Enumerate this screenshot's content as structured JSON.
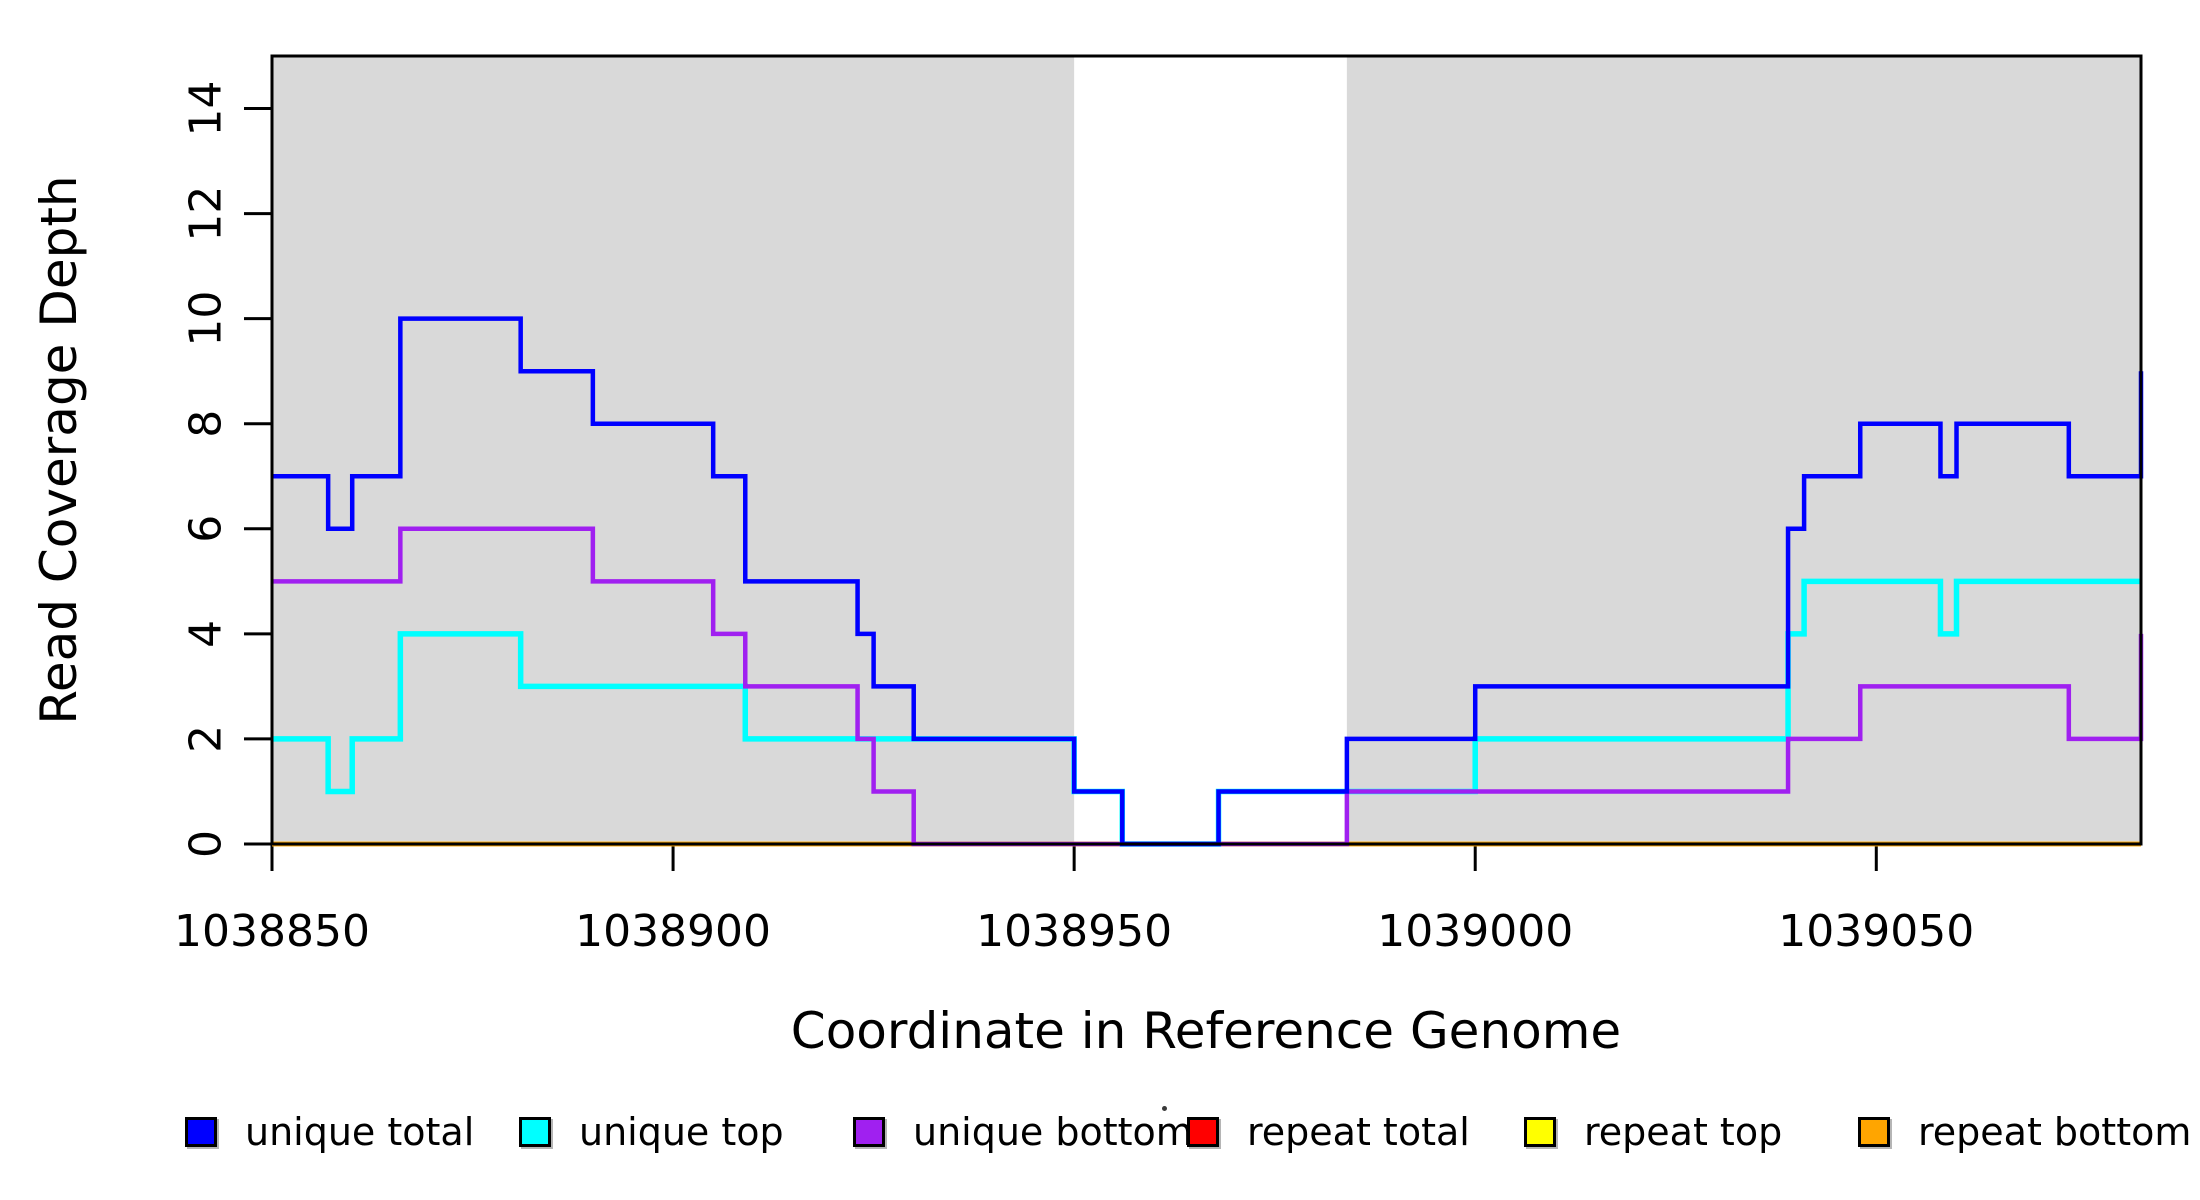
{
  "chart_data": {
    "type": "line",
    "subtype": "step-s",
    "title": "",
    "xlabel": "Coordinate in Reference Genome",
    "ylabel": "Read Coverage Depth",
    "xlim": [
      1038850,
      1039083
    ],
    "ylim": [
      0,
      15
    ],
    "x_ticks": [
      1038850,
      1038900,
      1038950,
      1039000,
      1039050
    ],
    "x_tick_labels": [
      "1038850",
      "1038900",
      "1038950",
      "1039000",
      "1039050"
    ],
    "y_ticks": [
      0,
      2,
      4,
      6,
      8,
      10,
      12,
      14
    ],
    "y_tick_labels": [
      "0",
      "2",
      "4",
      "6",
      "8",
      "10",
      "12",
      "14"
    ],
    "grid": false,
    "legend_position": "bottom",
    "background_color": "#FFFFFF",
    "box_color": "#000000",
    "shaded_region_color": "#D9D9D9",
    "shaded_regions": [
      [
        1038850,
        1038950
      ],
      [
        1038984,
        1039083
      ]
    ],
    "series": [
      {
        "name": "repeat total",
        "color": "#FF0000",
        "width": 4.5,
        "steps": [
          [
            1038850,
            0
          ]
        ]
      },
      {
        "name": "repeat top",
        "color": "#FFFF00",
        "width": 4.5,
        "steps": [
          [
            1038850,
            0
          ]
        ]
      },
      {
        "name": "repeat bottom",
        "color": "#FFA500",
        "width": 4.5,
        "steps": [
          [
            1038850,
            0
          ]
        ]
      },
      {
        "name": "unique top",
        "color": "#00FFFF",
        "width": 5.5,
        "steps": [
          [
            1038850,
            2
          ],
          [
            1038857,
            1
          ],
          [
            1038860,
            2
          ],
          [
            1038866,
            4
          ],
          [
            1038881,
            3
          ],
          [
            1038909,
            2
          ],
          [
            1038950,
            1
          ],
          [
            1038956,
            0
          ],
          [
            1038968,
            1
          ],
          [
            1039000,
            2
          ],
          [
            1039039,
            4
          ],
          [
            1039041,
            5
          ],
          [
            1039058,
            4
          ],
          [
            1039060,
            5
          ]
        ]
      },
      {
        "name": "unique bottom",
        "color": "#A020F0",
        "width": 4.5,
        "steps": [
          [
            1038850,
            5
          ],
          [
            1038866,
            6
          ],
          [
            1038890,
            5
          ],
          [
            1038905,
            4
          ],
          [
            1038909,
            3
          ],
          [
            1038923,
            2
          ],
          [
            1038925,
            1
          ],
          [
            1038930,
            0
          ],
          [
            1038984,
            1
          ],
          [
            1039039,
            2
          ],
          [
            1039048,
            3
          ],
          [
            1039074,
            2
          ],
          [
            1039083,
            4
          ]
        ]
      },
      {
        "name": "unique total",
        "color": "#0000FF",
        "width": 4.5,
        "steps": [
          [
            1038850,
            7
          ],
          [
            1038857,
            6
          ],
          [
            1038860,
            7
          ],
          [
            1038866,
            10
          ],
          [
            1038881,
            9
          ],
          [
            1038890,
            8
          ],
          [
            1038905,
            7
          ],
          [
            1038909,
            5
          ],
          [
            1038923,
            4
          ],
          [
            1038925,
            3
          ],
          [
            1038930,
            2
          ],
          [
            1038950,
            1
          ],
          [
            1038956,
            0
          ],
          [
            1038968,
            1
          ],
          [
            1038984,
            2
          ],
          [
            1039000,
            3
          ],
          [
            1039039,
            6
          ],
          [
            1039041,
            7
          ],
          [
            1039048,
            8
          ],
          [
            1039058,
            7
          ],
          [
            1039060,
            8
          ],
          [
            1039074,
            7
          ],
          [
            1039083,
            9
          ]
        ]
      }
    ]
  },
  "legend": {
    "items": [
      {
        "label": "unique total",
        "color": "#0000FF"
      },
      {
        "label": "unique top",
        "color": "#00FFFF"
      },
      {
        "label": "unique bottom",
        "color": "#A020F0"
      },
      {
        "label": "repeat total",
        "color": "#FF0000"
      },
      {
        "label": "repeat top",
        "color": "#FFFF00"
      },
      {
        "label": "repeat bottom",
        "color": "#FFA500"
      }
    ]
  }
}
